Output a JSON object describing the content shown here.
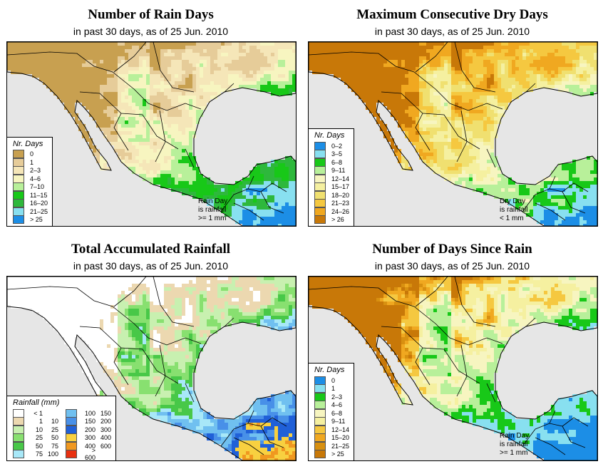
{
  "panels": [
    {
      "title": "Number of Rain Days",
      "subtitle": "in past 30 days, as of  25 Jun. 2010",
      "legend_title": "Nr. Days",
      "legend": [
        {
          "label": "0",
          "color": "#c8a050"
        },
        {
          "label": "1",
          "color": "#e6cc99"
        },
        {
          "label": "2–3",
          "color": "#f5e6b8"
        },
        {
          "label": "4–6",
          "color": "#f7f5c0"
        },
        {
          "label": "7–10",
          "color": "#b8f09a"
        },
        {
          "label": "11–15",
          "color": "#18c818"
        },
        {
          "label": "16–20",
          "color": "#2eb83c"
        },
        {
          "label": "21–25",
          "color": "#88e0f0"
        },
        {
          "label": "> 25",
          "color": "#1c8ee6"
        }
      ],
      "note": [
        "Rain Day",
        "is rainfall",
        ">= 1 mm"
      ]
    },
    {
      "title": "Maximum Consecutive Dry Days",
      "subtitle": "in past 30 days, as of  25 Jun. 2010",
      "legend_title": "Nr. Days",
      "legend": [
        {
          "label": "0–2",
          "color": "#1c8ee6"
        },
        {
          "label": "3–5",
          "color": "#88e0f0"
        },
        {
          "label": "6–8",
          "color": "#18c818"
        },
        {
          "label": "9–11",
          "color": "#b8f09a"
        },
        {
          "label": "12–14",
          "color": "#f7f5c0"
        },
        {
          "label": "15–17",
          "color": "#f5f0a0"
        },
        {
          "label": "18–20",
          "color": "#f0e070"
        },
        {
          "label": "21–23",
          "color": "#f5c840"
        },
        {
          "label": "24–26",
          "color": "#f0a820"
        },
        {
          "label": "> 26",
          "color": "#c87808"
        }
      ],
      "note": [
        "Dry Day",
        "is rainfall",
        "< 1 mm"
      ]
    },
    {
      "title": "Total Accumulated Rainfall",
      "subtitle": "in past 30 days, as of  25 Jun. 2010",
      "legend_title": "Rainfall (mm)",
      "legend_left": [
        {
          "lo": "< 1",
          "hi": "",
          "color": "#ffffff"
        },
        {
          "lo": "1",
          "hi": "10",
          "color": "#ecd8b0"
        },
        {
          "lo": "10",
          "hi": "25",
          "color": "#c8f0b0"
        },
        {
          "lo": "25",
          "hi": "50",
          "color": "#88e070"
        },
        {
          "lo": "50",
          "hi": "75",
          "color": "#48c848"
        },
        {
          "lo": "75",
          "hi": "100",
          "color": "#a8e8f8"
        }
      ],
      "legend_right": [
        {
          "lo": "100",
          "hi": "150",
          "color": "#70c0f0"
        },
        {
          "lo": "150",
          "hi": "200",
          "color": "#4890e8"
        },
        {
          "lo": "200",
          "hi": "300",
          "color": "#2060d8"
        },
        {
          "lo": "300",
          "hi": "400",
          "color": "#f8d040"
        },
        {
          "lo": "400",
          "hi": "600",
          "color": "#f09820"
        },
        {
          "lo": "> 600",
          "hi": "",
          "color": "#e83010"
        }
      ]
    },
    {
      "title": "Number of Days Since Rain",
      "subtitle": "in past 30 days, as of  25 Jun. 2010",
      "legend_title": "Nr. Days",
      "legend": [
        {
          "label": "0",
          "color": "#1c8ee6"
        },
        {
          "label": "1",
          "color": "#88e0f0"
        },
        {
          "label": "2–3",
          "color": "#18c818"
        },
        {
          "label": "4–6",
          "color": "#b8f09a"
        },
        {
          "label": "6–8",
          "color": "#f7f5c0"
        },
        {
          "label": "9–11",
          "color": "#f5f0a0"
        },
        {
          "label": "12–14",
          "color": "#f5c840"
        },
        {
          "label": "15–20",
          "color": "#f0a820"
        },
        {
          "label": "21–25",
          "color": "#d89010"
        },
        {
          "label": "> 25",
          "color": "#c87808"
        }
      ],
      "note": [
        "Rain Day",
        "is rainfall",
        ">= 1 mm"
      ]
    }
  ]
}
